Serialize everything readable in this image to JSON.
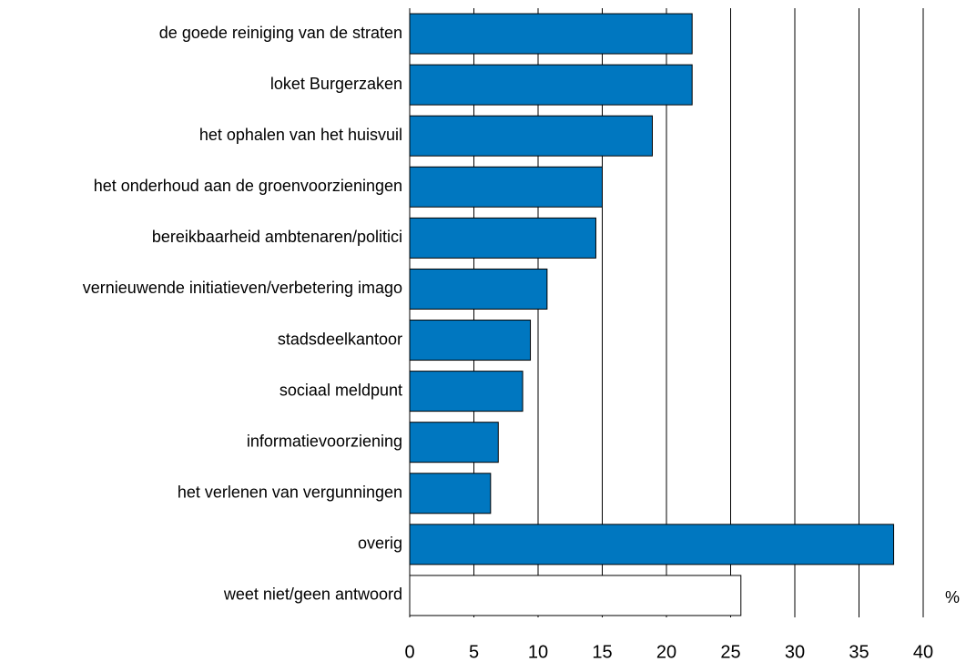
{
  "chart_data": {
    "type": "bar",
    "orientation": "horizontal",
    "categories": [
      "de goede reiniging van de straten",
      "loket Burgerzaken",
      "het ophalen van het huisvuil",
      "het onderhoud aan de groenvoorzieningen",
      "bereikbaarheid ambtenaren/politici",
      "vernieuwende initiatieven/verbetering imago",
      "stadsdeelkantoor",
      "sociaal meldpunt",
      "informatievoorziening",
      "het verlenen van vergunningen",
      "overig",
      "weet niet/geen antwoord"
    ],
    "values": [
      22,
      22,
      18.9,
      15,
      14.5,
      10.7,
      9.4,
      8.8,
      6.9,
      6.3,
      37.7,
      25.8
    ],
    "colors": [
      "#0077c0",
      "#0077c0",
      "#0077c0",
      "#0077c0",
      "#0077c0",
      "#0077c0",
      "#0077c0",
      "#0077c0",
      "#0077c0",
      "#0077c0",
      "#0077c0",
      "#ffffff"
    ],
    "x_label": "%",
    "xlim": [
      0,
      40
    ],
    "xticks": [
      0,
      5,
      10,
      15,
      20,
      25,
      30,
      35,
      40
    ],
    "grid": true
  }
}
